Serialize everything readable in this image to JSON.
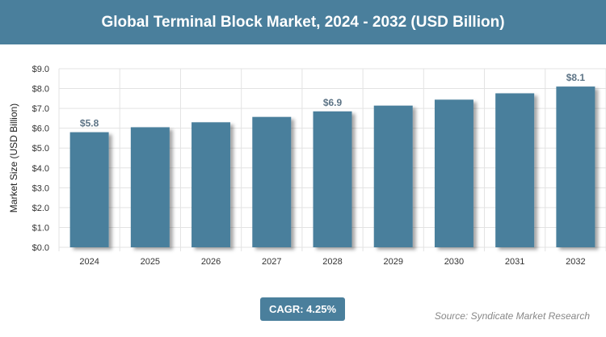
{
  "title": "Global Terminal Block Market, 2024 - 2032 (USD Billion)",
  "cagr_label": "CAGR: 4.25%",
  "source": "Source: Syndicate Market Research",
  "colors": {
    "bar": "#4a7f9c",
    "banner": "#4a7f9c"
  },
  "chart_data": {
    "type": "bar",
    "title": "Global Terminal Block Market, 2024 - 2032 (USD Billion)",
    "xlabel": "",
    "ylabel": "Market Size (USD Billion)",
    "categories": [
      "2024",
      "2025",
      "2026",
      "2027",
      "2028",
      "2029",
      "2030",
      "2031",
      "2032"
    ],
    "values": [
      5.8,
      6.05,
      6.3,
      6.57,
      6.85,
      7.14,
      7.44,
      7.76,
      8.1
    ],
    "data_labels": {
      "2024": "$5.8",
      "2028": "$6.9",
      "2032": "$8.1"
    },
    "ylim": [
      0,
      9
    ],
    "yticks": [
      "$0.0",
      "$1.0",
      "$2.0",
      "$3.0",
      "$4.0",
      "$5.0",
      "$6.0",
      "$7.0",
      "$8.0",
      "$9.0"
    ],
    "grid": true
  }
}
